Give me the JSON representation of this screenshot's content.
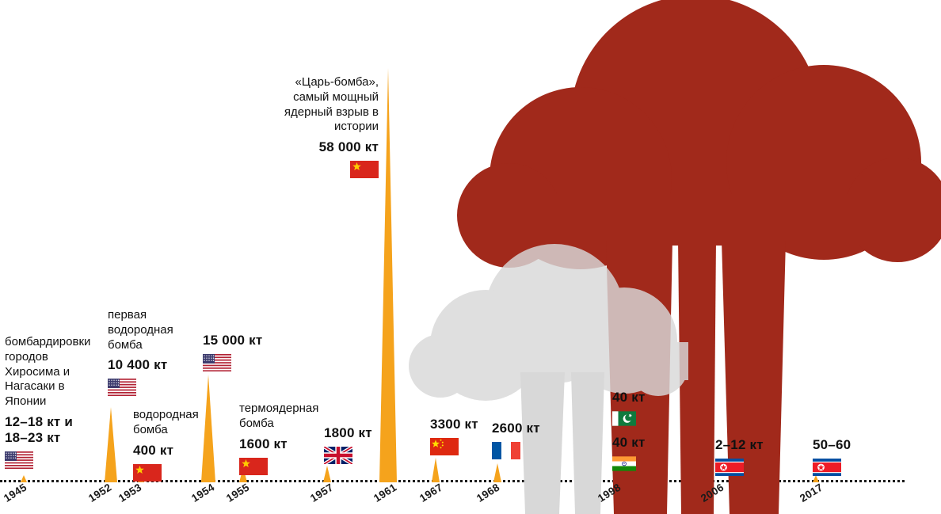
{
  "palette": {
    "spike_color": "#F5A31C",
    "cloud_dark_color": "#A1291B",
    "cloud_gray_color": "#D8D8D8",
    "text_color": "#111111"
  },
  "unit": "кт",
  "years": [
    "1945",
    "1952",
    "1953",
    "1954",
    "1955",
    "1957",
    "1961",
    "1967",
    "1968",
    "1998",
    "2006",
    "2017"
  ],
  "events": [
    {
      "year": "1945",
      "flag": "usa",
      "desc": "бомбардировки городов Хиросима и Нагасаки в Японии",
      "yield": "12–18 кт и 18–23 кт"
    },
    {
      "year": "1952",
      "flag": "usa",
      "desc": "первая водородная бомба",
      "yield": "10 400 кт"
    },
    {
      "year": "1953",
      "flag": "ussr",
      "desc": "водородная бомба",
      "yield": "400 кт"
    },
    {
      "year": "1954",
      "flag": "usa",
      "desc": "",
      "yield": "15 000 кт"
    },
    {
      "year": "1955",
      "flag": "ussr",
      "desc": "термоядерная бомба",
      "yield": "1600 кт"
    },
    {
      "year": "1957",
      "flag": "uk",
      "desc": "",
      "yield": "1800 кт"
    },
    {
      "year": "1961",
      "flag": "ussr",
      "desc": "«Царь-бомба», самый мощный ядерный взрыв в истории",
      "yield": "58 000 кт"
    },
    {
      "year": "1967",
      "flag": "china",
      "desc": "",
      "yield": "3300 кт"
    },
    {
      "year": "1968",
      "flag": "france",
      "desc": "",
      "yield": "2600 кт"
    },
    {
      "year": "1998",
      "flag": "pakistan",
      "desc": "",
      "yield": "40 кт"
    },
    {
      "year": "1998",
      "flag": "india",
      "desc": "",
      "yield": "40 кт"
    },
    {
      "year": "2006",
      "flag": "north-korea",
      "desc": "",
      "yield": "2–12 кт"
    },
    {
      "year": "2017",
      "flag": "north-korea",
      "desc": "",
      "yield": "50–60"
    }
  ],
  "chart_data": {
    "type": "bar",
    "title": "",
    "xlabel": "",
    "ylabel": "",
    "unit": "кт",
    "categories": [
      "1945",
      "1952",
      "1953",
      "1954",
      "1955",
      "1957",
      "1961",
      "1967",
      "1968",
      "1998",
      "1998",
      "2006",
      "2017"
    ],
    "values": [
      "12–18 и 18–23",
      10400,
      400,
      15000,
      1600,
      1800,
      58000,
      3300,
      2600,
      40,
      40,
      "2–12",
      "50–60"
    ],
    "flags": [
      "usa",
      "usa",
      "ussr",
      "usa",
      "ussr",
      "uk",
      "ussr",
      "china",
      "france",
      "pakistan",
      "india",
      "north-korea",
      "north-korea"
    ],
    "annotations": [
      "бомбардировки городов Хиросима и Нагасаки в Японии",
      "первая водородная бомба",
      "водородная бомба",
      "",
      "термоядерная бомба",
      "",
      "«Царь-бомба», самый мощный ядерный взрыв в истории",
      "",
      "",
      "",
      "",
      "",
      ""
    ],
    "legend_position": "none",
    "grid": false
  }
}
